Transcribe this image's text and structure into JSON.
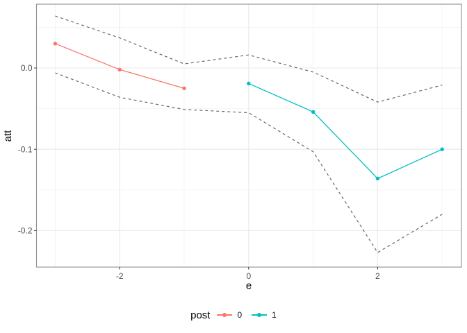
{
  "chart_data": {
    "type": "line",
    "title": "",
    "xlabel": "e",
    "ylabel": "att",
    "xlim": [
      -3.29,
      3.3
    ],
    "ylim": [
      -0.2449,
      0.0785
    ],
    "grid": true,
    "x_ticks": {
      "values": [
        -2,
        0,
        2
      ],
      "labels": [
        "-2",
        "0",
        "2"
      ]
    },
    "y_ticks": {
      "values": [
        0,
        -0.1,
        -0.2
      ],
      "labels": [
        "0.0",
        "-0.1",
        "-0.2"
      ]
    },
    "x_minor": [
      -3,
      -1,
      1,
      3
    ],
    "y_minor": [
      0.05,
      -0.05,
      -0.15
    ],
    "legend": {
      "title": "post",
      "position": "bottom"
    },
    "series": [
      {
        "name": "0",
        "color": "#F8766D",
        "marker": "circle",
        "points": [
          [
            -3,
            0.03
          ],
          [
            -2,
            -0.002
          ],
          [
            -1,
            -0.025
          ]
        ]
      },
      {
        "name": "1",
        "color": "#00BFC4",
        "marker": "circle",
        "points": [
          [
            0,
            -0.019
          ],
          [
            1,
            -0.054
          ],
          [
            2,
            -0.136
          ],
          [
            3,
            -0.1
          ]
        ]
      }
    ],
    "confidence_band": {
      "style": "dashed",
      "color": "#606060",
      "upper": [
        [
          -3,
          0.064
        ],
        [
          -2,
          0.037
        ],
        [
          -1,
          0.005
        ],
        [
          0,
          0.016
        ],
        [
          1,
          -0.005
        ],
        [
          2,
          -0.042
        ],
        [
          3,
          -0.021
        ]
      ],
      "lower": [
        [
          -3,
          -0.006
        ],
        [
          -2,
          -0.036
        ],
        [
          -1,
          -0.051
        ],
        [
          0,
          -0.055
        ],
        [
          1,
          -0.103
        ],
        [
          2,
          -0.227
        ],
        [
          3,
          -0.18
        ]
      ]
    },
    "colors": {
      "background": "#ffffff",
      "panel_border": "#919191",
      "grid_major": "#e8e8e8",
      "grid_minor": "#f2f2f2",
      "tick": "#333333",
      "tick_label": "#4d4d4d",
      "axis_title": "#000000"
    }
  }
}
